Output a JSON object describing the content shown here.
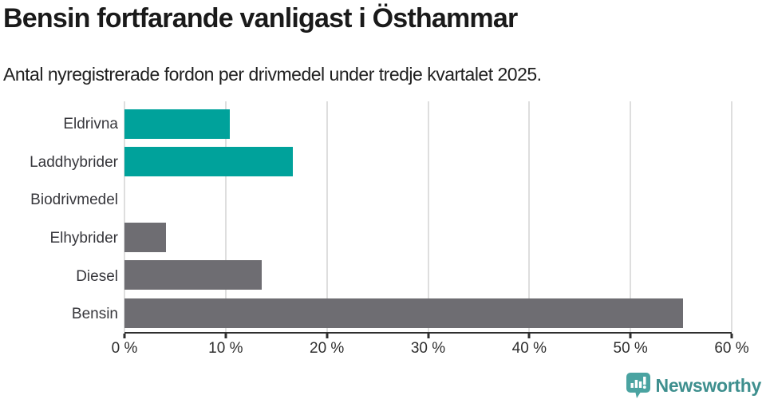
{
  "chart_data": {
    "type": "bar",
    "orientation": "horizontal",
    "title": "Bensin fortfarande vanligast i Östhammar",
    "subtitle": "Antal nyregistrerade fordon per drivmedel under tredje kvartalet 2025.",
    "categories": [
      "Eldrivna",
      "Laddhybrider",
      "Biodrivmedel",
      "Elhybrider",
      "Diesel",
      "Bensin"
    ],
    "values": [
      10.4,
      16.6,
      0,
      4.1,
      13.6,
      55.2
    ],
    "bar_colors": [
      "#00a29b",
      "#00a29b",
      "#6e6d72",
      "#6e6d72",
      "#6e6d72",
      "#6e6d72"
    ],
    "xlim": [
      0,
      60
    ],
    "x_ticks": [
      "0 %",
      "10 %",
      "20 %",
      "30 %",
      "40 %",
      "50 %",
      "60 %"
    ],
    "xlabel": "",
    "ylabel": "",
    "grid": true,
    "legend_position": "none",
    "colors": {
      "accent_teal": "#00a29b",
      "neutral_gray": "#6e6d72",
      "gridline": "#dedede",
      "axis": "#2f2f2f"
    }
  },
  "branding": {
    "name": "Newsworthy",
    "text_color": "#3e8f8e",
    "icon": "newsworthy-chart-bubble-icon",
    "icon_color": "#4aa3a1"
  }
}
